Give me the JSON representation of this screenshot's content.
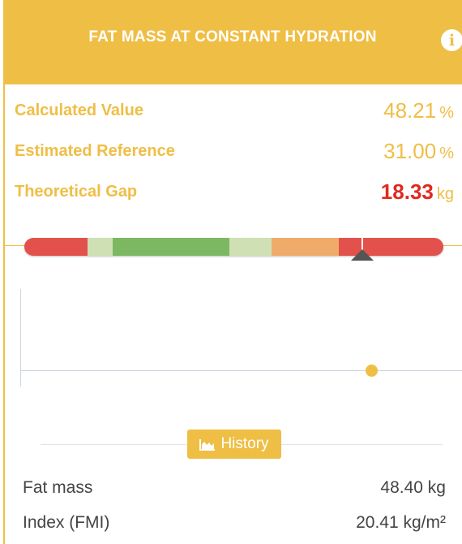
{
  "header": {
    "title": "FAT MASS AT CONSTANT HYDRATION",
    "info_icon": "info-icon"
  },
  "results": [
    {
      "label": "Calculated Value",
      "value": "48.21",
      "unit": "%"
    },
    {
      "label": "Estimated Reference",
      "value": "31.00",
      "unit": "%"
    },
    {
      "label": "Theoretical Gap",
      "value": "18.33",
      "unit": "kg"
    }
  ],
  "gauge": {
    "segments": [
      {
        "color": "#e2514b",
        "share": 15
      },
      {
        "color": "#cfe0b5",
        "share": 6
      },
      {
        "color": "#7cb862",
        "share": 28
      },
      {
        "color": "#cfe0b5",
        "share": 10
      },
      {
        "color": "#f0ab6b",
        "share": 16
      },
      {
        "color": "#e2514b",
        "share": 25
      }
    ],
    "pointer_position": 0.8
  },
  "history_button": {
    "label": "History",
    "icon": "area-chart-icon"
  },
  "stats": [
    {
      "label": "Fat mass",
      "value": "48.40 kg"
    },
    {
      "label": "Index (FMI)",
      "value": "20.41 kg/m²"
    }
  ],
  "colors": {
    "accent": "#efbe45",
    "alert": "#e0291f"
  }
}
